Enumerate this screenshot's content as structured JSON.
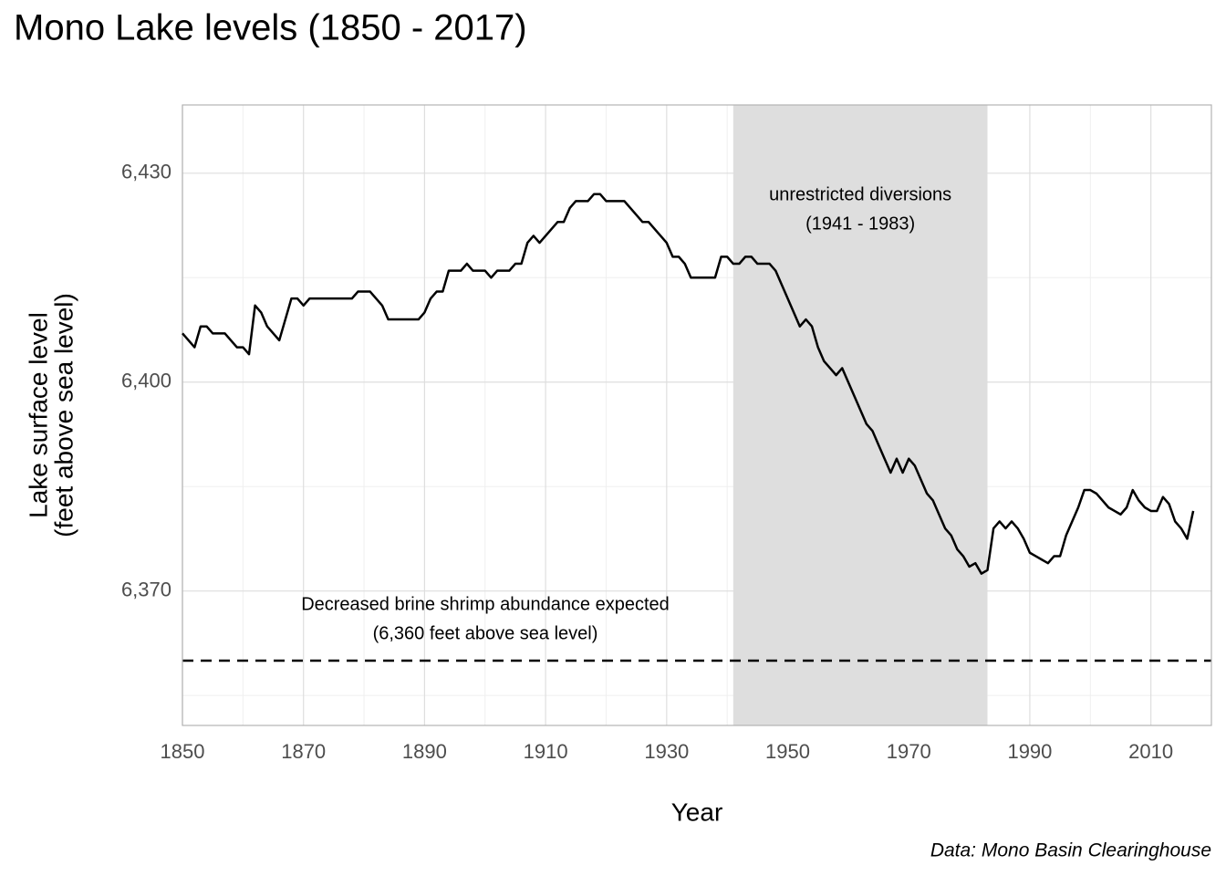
{
  "chart_data": {
    "type": "line",
    "title": "Mono Lake levels (1850 - 2017)",
    "x_label": "Year",
    "y_label": [
      "Lake surface level",
      "(feet above sea level)"
    ],
    "caption": "Data: Mono Basin Clearinghouse",
    "color": "#000000",
    "x": [
      1850,
      1851,
      1852,
      1853,
      1854,
      1855,
      1856,
      1857,
      1858,
      1859,
      1860,
      1861,
      1862,
      1863,
      1864,
      1865,
      1866,
      1867,
      1868,
      1869,
      1870,
      1871,
      1872,
      1873,
      1874,
      1875,
      1876,
      1877,
      1878,
      1879,
      1880,
      1881,
      1882,
      1883,
      1884,
      1885,
      1886,
      1887,
      1888,
      1889,
      1890,
      1891,
      1892,
      1893,
      1894,
      1895,
      1896,
      1897,
      1898,
      1899,
      1900,
      1901,
      1902,
      1903,
      1904,
      1905,
      1906,
      1907,
      1908,
      1909,
      1910,
      1911,
      1912,
      1913,
      1914,
      1915,
      1916,
      1917,
      1918,
      1919,
      1920,
      1921,
      1922,
      1923,
      1924,
      1925,
      1926,
      1927,
      1928,
      1929,
      1930,
      1931,
      1932,
      1933,
      1934,
      1935,
      1936,
      1937,
      1938,
      1939,
      1940,
      1941,
      1942,
      1943,
      1944,
      1945,
      1946,
      1947,
      1948,
      1949,
      1950,
      1951,
      1952,
      1953,
      1954,
      1955,
      1956,
      1957,
      1958,
      1959,
      1960,
      1961,
      1962,
      1963,
      1964,
      1965,
      1966,
      1967,
      1968,
      1969,
      1970,
      1971,
      1972,
      1973,
      1974,
      1975,
      1976,
      1977,
      1978,
      1979,
      1980,
      1981,
      1982,
      1983,
      1984,
      1985,
      1986,
      1987,
      1988,
      1989,
      1990,
      1991,
      1992,
      1993,
      1994,
      1995,
      1996,
      1997,
      1998,
      1999,
      2000,
      2001,
      2002,
      2003,
      2004,
      2005,
      2006,
      2007,
      2008,
      2009,
      2010,
      2011,
      2012,
      2013,
      2014,
      2015,
      2016,
      2017
    ],
    "values": [
      6407,
      6406,
      6405,
      6408,
      6408,
      6407,
      6407,
      6407,
      6406,
      6405,
      6405,
      6404,
      6411,
      6410,
      6408,
      6407,
      6406,
      6409,
      6412,
      6412,
      6411,
      6412,
      6412,
      6412,
      6412,
      6412,
      6412,
      6412,
      6412,
      6413,
      6413,
      6413,
      6412,
      6411,
      6409,
      6409,
      6409,
      6409,
      6409,
      6409,
      6410,
      6412,
      6413,
      6413,
      6416,
      6416,
      6416,
      6417,
      6416,
      6416,
      6416,
      6415,
      6416,
      6416,
      6416,
      6417,
      6417,
      6420,
      6421,
      6420,
      6421,
      6422,
      6423,
      6423,
      6425,
      6426,
      6426,
      6426,
      6427,
      6427,
      6426,
      6426,
      6426,
      6426,
      6425,
      6424,
      6423,
      6423,
      6422,
      6421,
      6420,
      6418,
      6418,
      6417,
      6415,
      6415,
      6415,
      6415,
      6415,
      6418,
      6418,
      6417,
      6417,
      6418,
      6418,
      6417,
      6417,
      6417,
      6416,
      6414,
      6412,
      6410,
      6408,
      6409,
      6408,
      6405,
      6403,
      6402,
      6401,
      6402,
      6400,
      6398,
      6396,
      6394,
      6393,
      6391,
      6389,
      6387,
      6389,
      6387,
      6389,
      6388,
      6386,
      6384,
      6383,
      6381,
      6379,
      6378,
      6376,
      6375,
      6373.5,
      6374,
      6372.5,
      6373,
      6379,
      6380,
      6379,
      6380,
      6379,
      6377.5,
      6375.5,
      6375,
      6374.5,
      6374,
      6375,
      6375,
      6378,
      6380,
      6382,
      6384.5,
      6384.5,
      6384,
      6383,
      6382,
      6381.5,
      6381,
      6382,
      6384.5,
      6383,
      6382,
      6381.5,
      6381.5,
      6383.5,
      6382.5,
      6380,
      6379,
      6377.5,
      6381.5
    ],
    "xlim": [
      1850,
      2020
    ],
    "ylim": [
      6350.7,
      6439.8
    ],
    "xticks": [
      1850,
      1870,
      1890,
      1910,
      1930,
      1950,
      1970,
      1990,
      2010
    ],
    "yticks": [
      {
        "value": 6370,
        "label": "6,370"
      },
      {
        "value": 6400,
        "label": "6,400"
      },
      {
        "value": 6430,
        "label": "6,430"
      }
    ],
    "xminor": [
      1860,
      1880,
      1900,
      1920,
      1940,
      1960,
      1980,
      2000
    ],
    "yminor": [
      6355,
      6385,
      6415
    ],
    "grid": true,
    "shade": {
      "xmin": 1941,
      "xmax": 1983,
      "color": "#dedede",
      "label": [
        "unrestricted diversions",
        "(1941 - 1983)"
      ]
    },
    "hline": {
      "y": 6360,
      "label": [
        "Decreased brine shrimp abundance expected",
        "(6,360 feet above sea level)"
      ]
    }
  }
}
